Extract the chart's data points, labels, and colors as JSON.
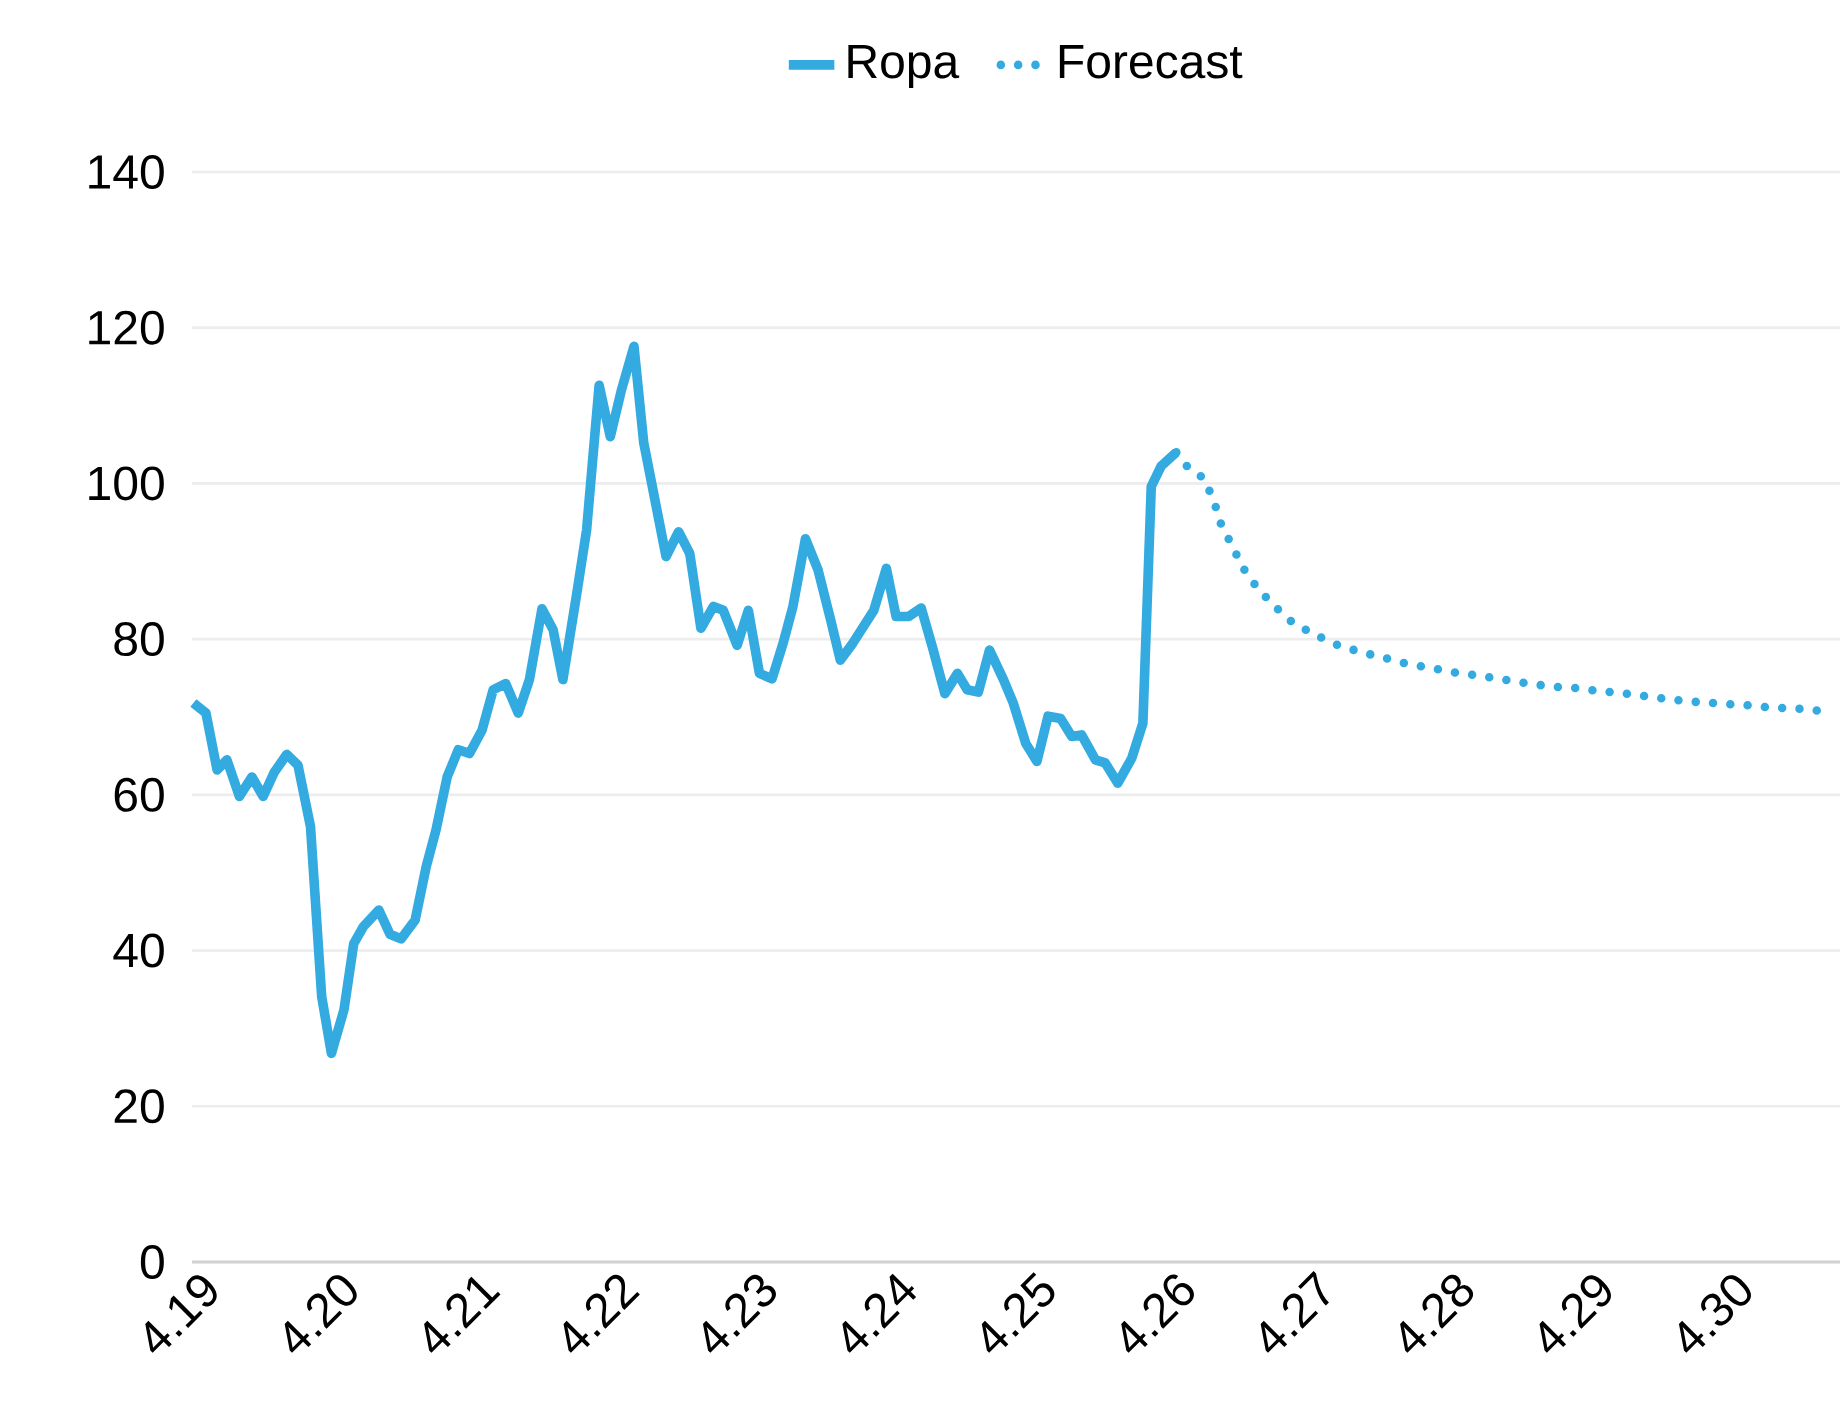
{
  "chart_data": {
    "type": "line",
    "xlim": [
      4.19,
      4.3082
    ],
    "ylim": [
      0,
      140
    ],
    "xticks": [
      {
        "value": 4.19,
        "label": "4.19"
      },
      {
        "value": 4.2,
        "label": "4.20"
      },
      {
        "value": 4.21,
        "label": "4.21"
      },
      {
        "value": 4.22,
        "label": "4.22"
      },
      {
        "value": 4.23,
        "label": "4.23"
      },
      {
        "value": 4.24,
        "label": "4.24"
      },
      {
        "value": 4.25,
        "label": "4.25"
      },
      {
        "value": 4.26,
        "label": "4.26"
      },
      {
        "value": 4.27,
        "label": "4.27"
      },
      {
        "value": 4.28,
        "label": "4.28"
      },
      {
        "value": 4.29,
        "label": "4.29"
      },
      {
        "value": 4.3,
        "label": "4.30"
      }
    ],
    "yticks": [
      0,
      20,
      40,
      60,
      80,
      100,
      120,
      140
    ],
    "grid": "y",
    "legend": "top",
    "marker": "none",
    "series": [
      {
        "name": "Ropa",
        "color": "#33aae0",
        "line_style": "solid",
        "x": [
          4.1901,
          4.191,
          4.1918,
          4.1925,
          4.1934,
          4.1943,
          4.1951,
          4.1959,
          4.1968,
          4.1976,
          4.1985,
          4.1993,
          4.2,
          4.2009,
          4.2016,
          4.2023,
          4.2034,
          4.2042,
          4.205,
          4.206,
          4.2068,
          4.2075,
          4.2083,
          4.2091,
          4.2099,
          4.2108,
          4.2116,
          4.2125,
          4.2134,
          4.2142,
          4.2151,
          4.2159,
          4.2166,
          4.2176,
          4.2183,
          4.2192,
          4.22,
          4.2208,
          4.2217,
          4.2224,
          4.2232,
          4.224,
          4.2249,
          4.2257,
          4.2265,
          4.2274,
          4.2281,
          4.2291,
          4.2299,
          4.2307,
          4.2316,
          4.2324,
          4.2331,
          4.234,
          4.2349,
          4.2358,
          4.2365,
          4.2374,
          4.2389,
          4.2398,
          4.2405,
          4.2414,
          4.2423,
          4.2431,
          4.244,
          4.2449,
          4.2456,
          4.2464,
          4.2472,
          4.2482,
          4.2489,
          4.2498,
          4.2506,
          4.2514,
          4.2523,
          4.2531,
          4.2538,
          4.2548,
          4.2555,
          4.2564,
          4.2574,
          4.2582,
          4.2588,
          4.2595,
          4.2606
        ],
        "values": [
          71.8,
          70.5,
          63.2,
          64.5,
          59.8,
          62.3,
          59.8,
          62.9,
          65.2,
          63.8,
          55.9,
          34.1,
          26.8,
          32.4,
          40.9,
          43.1,
          45.2,
          42.1,
          41.5,
          43.9,
          50.8,
          55.5,
          62.3,
          65.8,
          65.3,
          68.3,
          73.5,
          74.3,
          70.5,
          74.8,
          83.9,
          81.2,
          74.8,
          85.9,
          94.0,
          112.6,
          106.0,
          112.0,
          117.6,
          105.2,
          97.9,
          90.6,
          93.8,
          91.0,
          81.4,
          84.2,
          83.7,
          79.2,
          83.7,
          75.6,
          74.9,
          79.5,
          84.2,
          92.9,
          88.9,
          82.5,
          77.3,
          79.5,
          83.7,
          89.1,
          82.9,
          82.9,
          84.0,
          79.0,
          73.0,
          75.6,
          73.5,
          73.2,
          78.6,
          74.8,
          71.8,
          66.6,
          64.3,
          70.1,
          69.8,
          67.5,
          67.7,
          64.5,
          64.1,
          61.5,
          64.7,
          69.2,
          99.6,
          102.2,
          104.0
        ]
      },
      {
        "name": "Forecast",
        "color": "#33aae0",
        "line_style": "dotted",
        "x": [
          4.2606,
          4.2613,
          4.2626,
          4.2633,
          4.2638,
          4.2646,
          4.2654,
          4.2664,
          4.2676,
          4.2689,
          4.2705,
          4.2721,
          4.2737,
          4.2755,
          4.2772,
          4.2789,
          4.2806,
          4.2824,
          4.2841,
          4.2858,
          4.2876,
          4.2893,
          4.2911,
          4.2928,
          4.2946,
          4.2963,
          4.2981,
          4.2999,
          4.3016,
          4.3033,
          4.3051,
          4.3068
        ],
        "values": [
          104.0,
          102.3,
          100.6,
          97.7,
          94.8,
          92.0,
          89.1,
          86.6,
          84.3,
          82.2,
          80.6,
          79.3,
          78.4,
          77.6,
          76.8,
          76.3,
          75.7,
          75.3,
          74.8,
          74.3,
          73.9,
          73.7,
          73.3,
          73.0,
          72.6,
          72.2,
          71.9,
          71.7,
          71.5,
          71.2,
          71.1,
          70.8
        ]
      }
    ]
  }
}
